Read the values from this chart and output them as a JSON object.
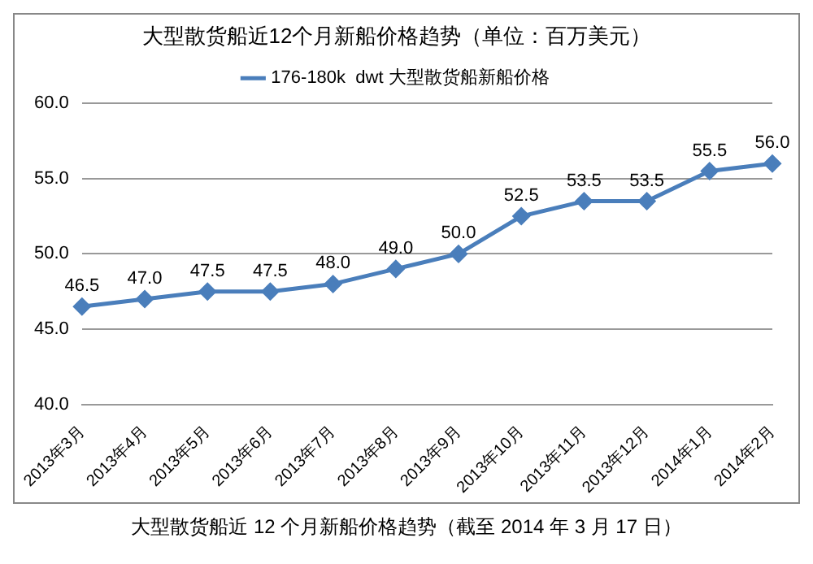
{
  "chart_data": {
    "type": "line",
    "title": "大型散货船近12个月新船价格趋势（单位：百万美元）",
    "categories": [
      "2013年3月",
      "2013年4月",
      "2013年5月",
      "2013年6月",
      "2013年7月",
      "2013年8月",
      "2013年9月",
      "2013年10月",
      "2013年11月",
      "2013年12月",
      "2014年1月",
      "2014年2月"
    ],
    "series": [
      {
        "name": "176-180k  dwt 大型散货船新船价格",
        "color": "#4a7ebb",
        "values": [
          46.5,
          47.0,
          47.5,
          47.5,
          48.0,
          49.0,
          50.0,
          52.5,
          53.5,
          53.5,
          55.5,
          56.0
        ],
        "value_labels": [
          "46.5",
          "47.0",
          "47.5",
          "47.5",
          "48.0",
          "49.0",
          "50.0",
          "52.5",
          "53.5",
          "53.5",
          "55.5",
          "56.0"
        ]
      }
    ],
    "ylim": [
      40,
      60
    ],
    "yticks": [
      {
        "value": 40,
        "label": "40.0"
      },
      {
        "value": 45,
        "label": "45.0"
      },
      {
        "value": 50,
        "label": "50.0"
      },
      {
        "value": 55,
        "label": "55.0"
      },
      {
        "value": 60,
        "label": "60.0"
      }
    ],
    "grid": "y",
    "legend": "top",
    "marker": "diamond",
    "line_style": "solid",
    "annotations": [
      "大型散货船近 12 个月新船价格趋势（截至 2014 年 3 月 17 日）"
    ]
  }
}
